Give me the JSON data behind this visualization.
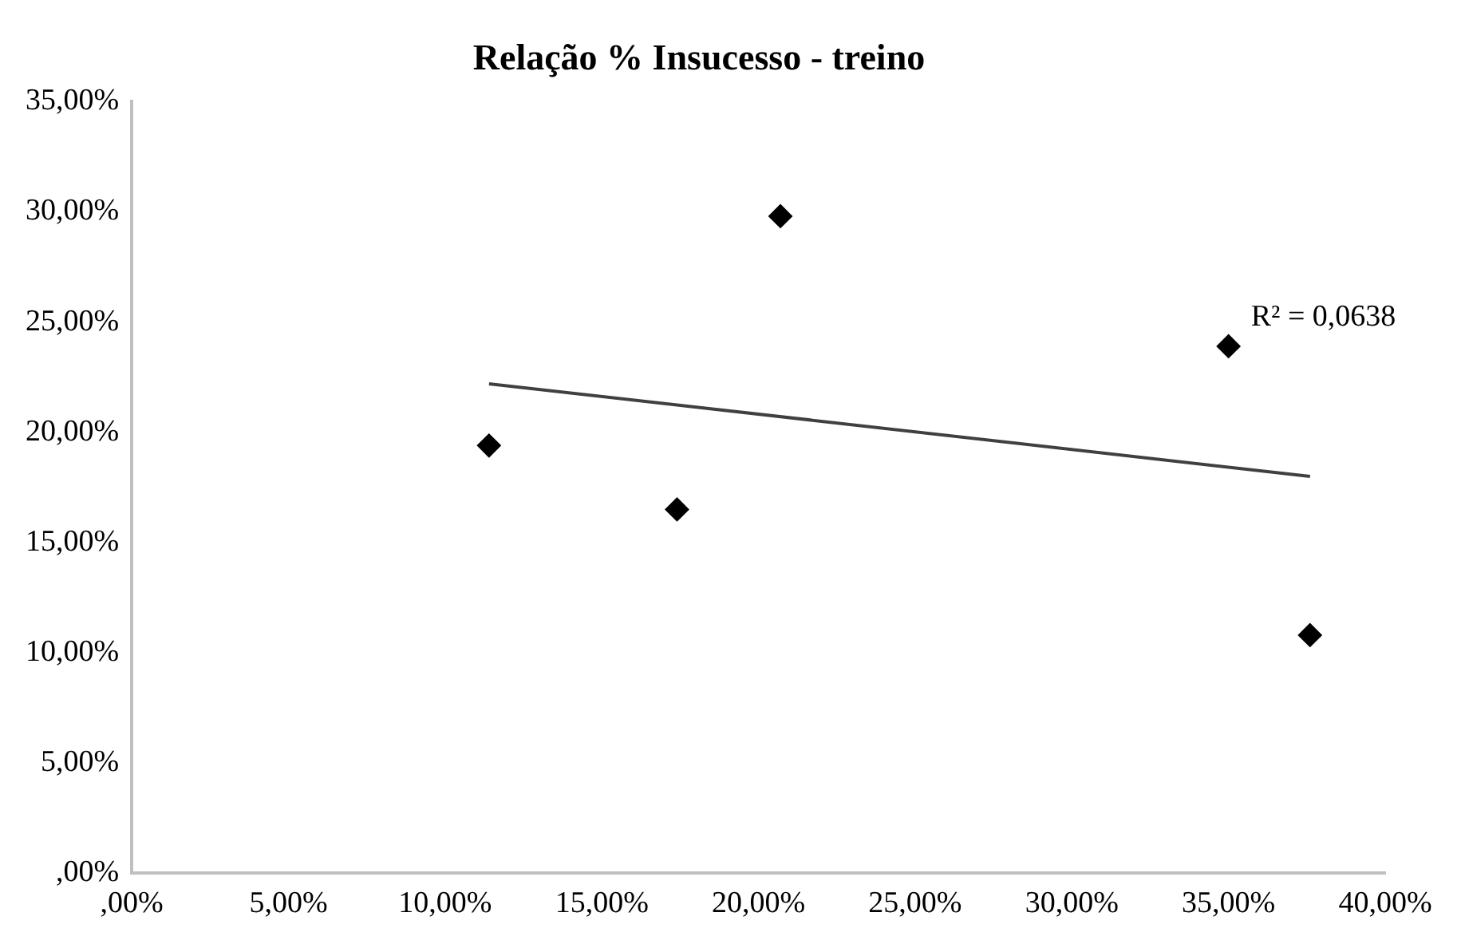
{
  "chart_data": {
    "type": "scatter",
    "title": "Relação % Insucesso - treino",
    "x": [
      11.4,
      17.4,
      20.7,
      35.0,
      37.6
    ],
    "series": [
      {
        "color": "#000000",
        "marker": "diamond",
        "values": [
          19.4,
          16.5,
          29.8,
          23.9,
          10.8
        ]
      },
      {
        "type": "line",
        "color": "#404040",
        "marker": "none",
        "line_style": "solid",
        "x": [
          11.4,
          37.6
        ],
        "values": [
          22.2,
          18.0
        ]
      }
    ],
    "annotations": [
      {
        "text": "R² = 0,0638",
        "x": 35.0,
        "y": 23.9
      }
    ],
    "xlim": [
      0,
      40
    ],
    "ylim": [
      0,
      35
    ],
    "xticks": [
      {
        "value": 0,
        "label": ",00%"
      },
      {
        "value": 5,
        "label": "5,00%"
      },
      {
        "value": 10,
        "label": "10,00%"
      },
      {
        "value": 15,
        "label": "15,00%"
      },
      {
        "value": 20,
        "label": "20,00%"
      },
      {
        "value": 25,
        "label": "25,00%"
      },
      {
        "value": 30,
        "label": "30,00%"
      },
      {
        "value": 35,
        "label": "35,00%"
      },
      {
        "value": 40,
        "label": "40,00%"
      }
    ],
    "yticks": [
      {
        "value": 0,
        "label": ",00%"
      },
      {
        "value": 5,
        "label": "5,00%"
      },
      {
        "value": 10,
        "label": "10,00%"
      },
      {
        "value": 15,
        "label": "15,00%"
      },
      {
        "value": 20,
        "label": "20,00%"
      },
      {
        "value": 25,
        "label": "25,00%"
      },
      {
        "value": 30,
        "label": "30,00%"
      },
      {
        "value": 35,
        "label": "35,00%"
      }
    ],
    "grid": false,
    "legend": false
  }
}
